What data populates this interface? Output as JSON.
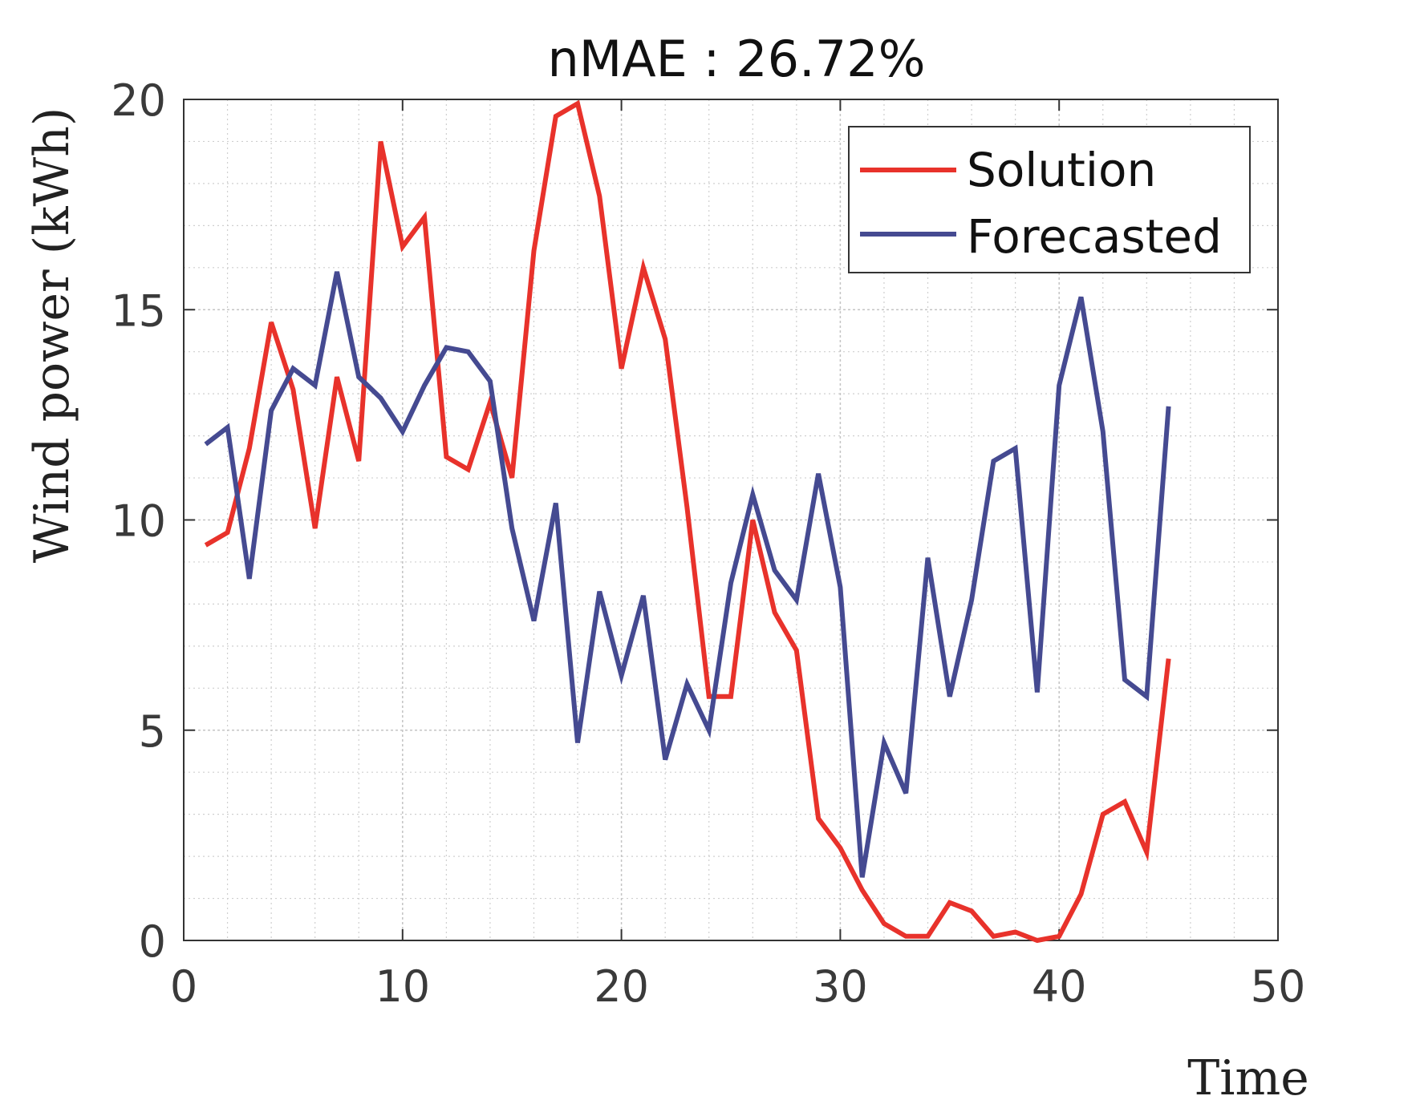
{
  "chart_data": {
    "type": "line",
    "title": "nMAE : 26.72%",
    "xlabel": "Time",
    "ylabel": "Wind power (kWh)",
    "xlim": [
      0,
      50
    ],
    "ylim": [
      0,
      20
    ],
    "x_ticks": [
      "0",
      "10",
      "20",
      "30",
      "40",
      "50"
    ],
    "y_ticks": [
      "0",
      "5",
      "10",
      "15",
      "20"
    ],
    "grid": true,
    "minor_grid": true,
    "legend_position": "top-right",
    "x": [
      1,
      2,
      3,
      4,
      5,
      6,
      7,
      8,
      9,
      10,
      11,
      12,
      13,
      14,
      15,
      16,
      17,
      18,
      19,
      20,
      21,
      22,
      23,
      24,
      25,
      26,
      27,
      28,
      29,
      30,
      31,
      32,
      33,
      34,
      35,
      36,
      37,
      38,
      39,
      40,
      41,
      42,
      43,
      44,
      45
    ],
    "series": [
      {
        "name": "Solution",
        "color": "#e8322b",
        "values": [
          9.4,
          9.7,
          11.7,
          14.7,
          13.1,
          9.8,
          13.4,
          11.4,
          19.0,
          16.5,
          17.2,
          11.5,
          11.2,
          12.8,
          11.0,
          16.4,
          19.6,
          19.9,
          17.7,
          13.6,
          16.0,
          14.3,
          10.3,
          5.8,
          5.8,
          10.0,
          7.8,
          6.9,
          2.9,
          2.2,
          1.2,
          0.4,
          0.1,
          0.1,
          0.9,
          0.7,
          0.1,
          0.2,
          0.0,
          0.1,
          1.1,
          3.0,
          3.3,
          2.1,
          6.7
        ]
      },
      {
        "name": "Forecasted",
        "color": "#454a91",
        "values": [
          11.8,
          12.2,
          8.6,
          12.6,
          13.6,
          13.2,
          15.9,
          13.4,
          12.9,
          12.1,
          13.2,
          14.1,
          14.0,
          13.3,
          9.8,
          7.6,
          10.4,
          4.7,
          8.3,
          6.3,
          8.2,
          4.3,
          6.1,
          5.0,
          8.5,
          10.6,
          8.8,
          8.1,
          11.1,
          8.4,
          1.5,
          4.7,
          3.5,
          9.1,
          5.8,
          8.1,
          11.4,
          11.7,
          5.9,
          13.2,
          15.3,
          12.1,
          6.2,
          5.8,
          12.7
        ]
      }
    ]
  }
}
